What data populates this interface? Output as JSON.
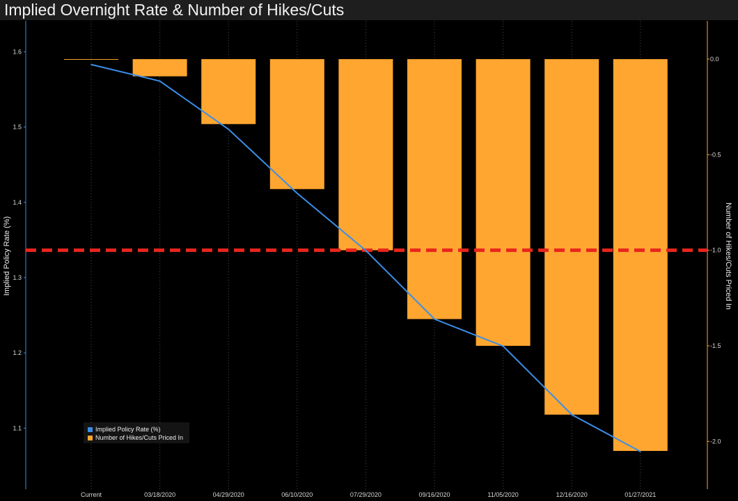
{
  "title": "Implied Overnight Rate & Number of Hikes/Cuts",
  "colors": {
    "background": "#000000",
    "line": "#3b8ee8",
    "bars": "#ffa630",
    "threshold": "#e8251c",
    "left_axis": "#3b8ee8",
    "right_axis": "#ffa630"
  },
  "legend": {
    "line_label": "Implied Policy Rate (%)",
    "bar_label": "Number of Hikes/Cuts Priced In"
  },
  "chart_data": {
    "type": "bar",
    "categories": [
      "Current",
      "03/18/2020",
      "04/29/2020",
      "06/10/2020",
      "07/29/2020",
      "09/16/2020",
      "11/05/2020",
      "12/16/2020",
      "01/27/2021"
    ],
    "series": [
      {
        "name": "Implied Policy Rate (%)",
        "type": "line",
        "axis": "left",
        "values": [
          1.583,
          1.561,
          1.497,
          1.412,
          1.336,
          1.245,
          1.209,
          1.118,
          1.069
        ]
      },
      {
        "name": "Number of Hikes/Cuts Priced In",
        "type": "bar",
        "axis": "right",
        "values": [
          0.0,
          -0.09,
          -0.34,
          -0.68,
          -1.0,
          -1.36,
          -1.5,
          -1.86,
          -2.05
        ]
      }
    ],
    "reference_line": {
      "axis": "right",
      "value": -1.0,
      "style": "dashed"
    },
    "ylabel_left": "Implied Policy Rate (%)",
    "ylabel_right": "Number of Hikes/Cuts Priced In",
    "ylim_left": [
      1.019,
      1.641
    ],
    "yticks_left": [
      "1.1",
      "1.2",
      "1.3",
      "1.4",
      "1.5",
      "1.6"
    ],
    "ylim_right": [
      -2.25,
      0.2
    ],
    "yticks_right": [
      "-2.0",
      "-1.5",
      "-1.0",
      "-0.5",
      "0.0"
    ],
    "grid": "vertical-dotted",
    "legend_position": "bottom-left"
  }
}
